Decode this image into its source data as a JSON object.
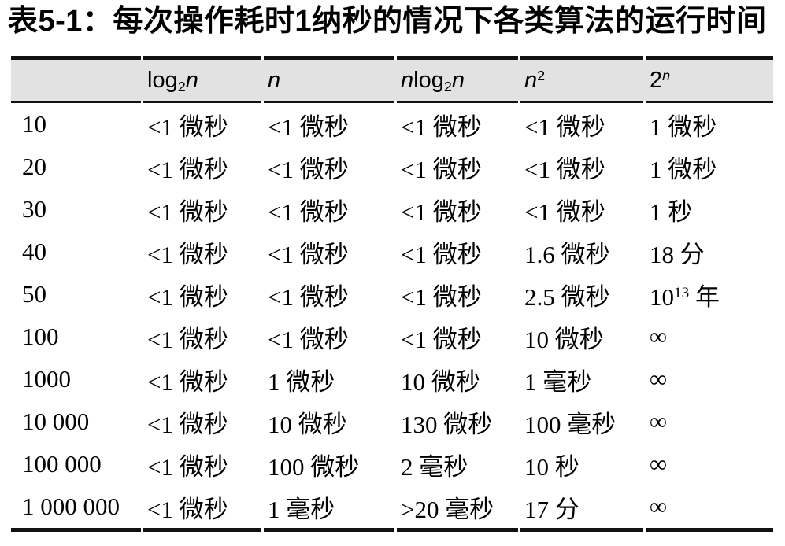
{
  "title": "表5-1：每次操作耗时1纳秒的情况下各类算法的运行时间",
  "colors": {
    "header_bg": "#e2e2e2",
    "rule": "#121212",
    "text": "#000000"
  },
  "table": {
    "columns": [
      "",
      "log_{2}*n*",
      "*n*",
      "*n*log_{2}*n*",
      "*n*^{2}",
      "2^{*n*}"
    ],
    "rows": [
      [
        "10",
        "<1 微秒",
        "<1 微秒",
        "<1 微秒",
        "<1 微秒",
        "1 微秒"
      ],
      [
        "20",
        "<1 微秒",
        "<1 微秒",
        "<1 微秒",
        "<1 微秒",
        "1 微秒"
      ],
      [
        "30",
        "<1 微秒",
        "<1 微秒",
        "<1 微秒",
        "<1 微秒",
        "1 秒"
      ],
      [
        "40",
        "<1 微秒",
        "<1 微秒",
        "<1 微秒",
        "1.6 微秒",
        "18 分"
      ],
      [
        "50",
        "<1 微秒",
        "<1 微秒",
        "<1 微秒",
        "2.5 微秒",
        "10^{13} 年"
      ],
      [
        "100",
        "<1 微秒",
        "<1 微秒",
        "<1 微秒",
        "10 微秒",
        "∞"
      ],
      [
        "1000",
        "<1 微秒",
        "1 微秒",
        "10 微秒",
        "1 毫秒",
        "∞"
      ],
      [
        "10 000",
        "<1 微秒",
        "10 微秒",
        "130 微秒",
        "100 毫秒",
        "∞"
      ],
      [
        "100 000",
        "<1 微秒",
        "100 微秒",
        "2 毫秒",
        "10 秒",
        "∞"
      ],
      [
        "1 000 000",
        "<1 微秒",
        "1 毫秒",
        ">20 毫秒",
        "17 分",
        "∞"
      ]
    ]
  }
}
